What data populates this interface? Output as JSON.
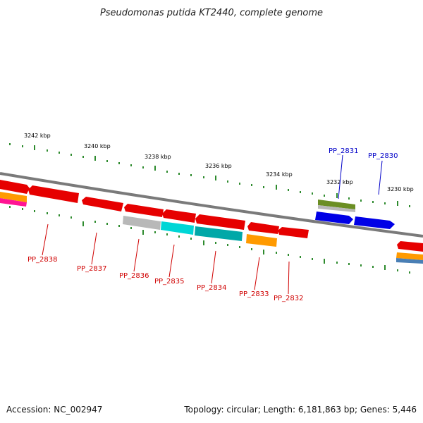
{
  "title": "Pseudomonas putida KT2440, complete genome",
  "footer": {
    "accession": "Accession: NC_002947",
    "summary": "Topology: circular; Length: 6,181,863 bp; Genes: 5,446"
  },
  "colors": {
    "red": "#e60000",
    "grey": "#b8b8b8",
    "cyan": "#00d6d6",
    "teal": "#00a8a8",
    "orange": "#ff9a00",
    "blue": "#0000e6",
    "olive": "#6b8e23",
    "magenta": "#ff1493",
    "steelblue": "#4a7fb5",
    "backbone": "#7a7a7a",
    "tick": "#2e8b2e",
    "label_red": "#d00000",
    "label_blue": "#0000c8"
  },
  "ticks": [
    "3242 kbp",
    "3240 kbp",
    "3238 kbp",
    "3236 kbp",
    "3234 kbp",
    "3232 kbp",
    "3230 kbp"
  ],
  "genes": [
    {
      "id": "PP_2838",
      "color": "red",
      "strand": "minus"
    },
    {
      "id": "PP_2837",
      "color": "red",
      "strand": "minus"
    },
    {
      "id": "PP_2836",
      "color": "red",
      "strand": "minus"
    },
    {
      "id": "PP_2835",
      "color": "red",
      "strand": "minus"
    },
    {
      "id": "PP_2834",
      "color": "red",
      "strand": "minus"
    },
    {
      "id": "PP_2833",
      "color": "red",
      "strand": "minus"
    },
    {
      "id": "PP_2832",
      "color": "red",
      "strand": "minus"
    },
    {
      "id": "PP_2831",
      "color": "blue",
      "strand": "plus"
    },
    {
      "id": "PP_2830",
      "color": "blue",
      "strand": "plus"
    }
  ]
}
